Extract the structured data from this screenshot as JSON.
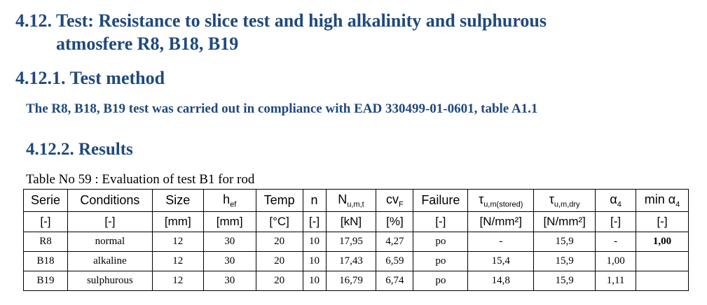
{
  "section": {
    "number": "4.12.",
    "title_lines": [
      "Test: Resistance to slice test and high alkalinity and sulphurous",
      "atmosfere R8, B18, B19"
    ]
  },
  "method": {
    "heading": "4.12.1. Test method",
    "text": "The R8, B18, B19 test was carried out in compliance with EAD 330499-01-0601, table A1.1"
  },
  "results": {
    "heading": "4.12.2. Results",
    "caption": "Table No 59 : Evaluation of test B1 for rod"
  },
  "table": {
    "header": [
      {
        "text": "Serie"
      },
      {
        "text": "Conditions"
      },
      {
        "text": "Size"
      },
      {
        "text": "h",
        "sub": "ef"
      },
      {
        "text": "Temp"
      },
      {
        "text": "n"
      },
      {
        "text": "N",
        "sub": "u,m,t"
      },
      {
        "text": "cv",
        "sub": "F"
      },
      {
        "text": "Failure"
      },
      {
        "text": "τ",
        "sub": "u,m(stored)"
      },
      {
        "text": "τ",
        "sub": "u,m,dry"
      },
      {
        "text": "α",
        "sub": "4"
      },
      {
        "text": "min α",
        "sub": "4"
      }
    ],
    "units": [
      "[-]",
      "[-]",
      "[mm]",
      "[mm]",
      "[°C]",
      "[-]",
      "[kN]",
      "[%]",
      "[-]",
      "[N/mm²]",
      "[N/mm²]",
      "[-]",
      "[-]"
    ],
    "rows": [
      [
        "R8",
        "normal",
        "12",
        "30",
        "20",
        "10",
        "17,95",
        "4,27",
        "po",
        "-",
        "15,9",
        "-",
        "1,00"
      ],
      [
        "B18",
        "alkaline",
        "12",
        "30",
        "20",
        "10",
        "17,43",
        "6,59",
        "po",
        "15,4",
        "15,9",
        "1,00",
        ""
      ],
      [
        "B19",
        "sulphurous",
        "12",
        "30",
        "20",
        "10",
        "16,79",
        "6,74",
        "po",
        "14,8",
        "15,9",
        "1,11",
        ""
      ]
    ]
  }
}
